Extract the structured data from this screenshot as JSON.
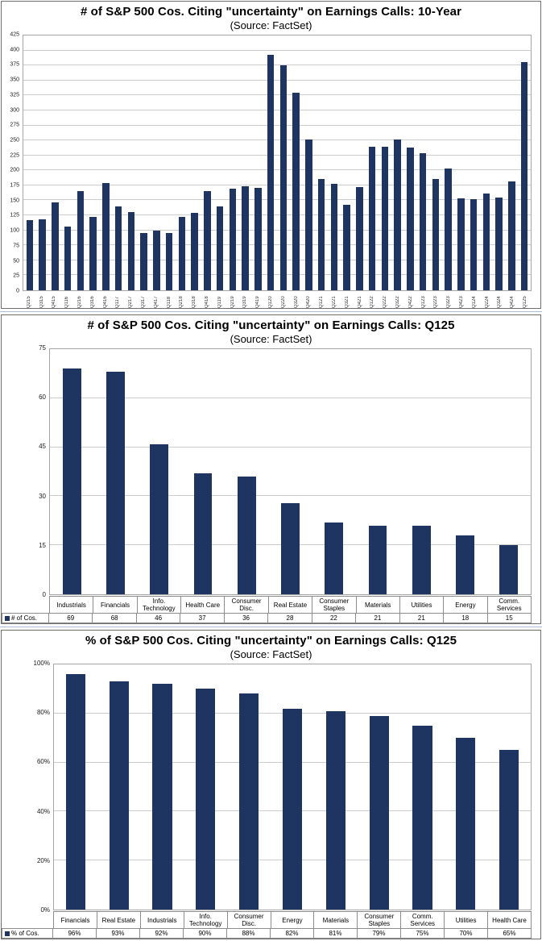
{
  "colors": {
    "bar": "#1d3560",
    "gridline": "#cccccc",
    "plot_border": "#a6a6a6",
    "figure_border": "#6e6e6e",
    "separator": "#a9bdd4"
  },
  "chart_data": [
    {
      "type": "bar",
      "title": "# of S&P 500 Cos. Citing \"uncertainty\" on Earnings Calls: 10-Year",
      "subtitle": "(Source: FactSet)",
      "categories": [
        "Q215",
        "Q315",
        "Q415",
        "Q116",
        "Q216",
        "Q316",
        "Q416",
        "Q117",
        "Q217",
        "Q317",
        "Q417",
        "Q118",
        "Q218",
        "Q318",
        "Q418",
        "Q119",
        "Q219",
        "Q319",
        "Q419",
        "Q120",
        "Q220",
        "Q320",
        "Q420",
        "Q121",
        "Q221",
        "Q321",
        "Q421",
        "Q122",
        "Q222",
        "Q322",
        "Q422",
        "Q123",
        "Q223",
        "Q323",
        "Q423",
        "Q124",
        "Q224",
        "Q324",
        "Q424",
        "Q125"
      ],
      "values": [
        117,
        118,
        146,
        106,
        165,
        123,
        179,
        140,
        130,
        96,
        100,
        95,
        123,
        129,
        166,
        140,
        169,
        174,
        171,
        393,
        375,
        330,
        252,
        186,
        178,
        143,
        172,
        240,
        240,
        251,
        238,
        228,
        186,
        203,
        153,
        152,
        161,
        155,
        182,
        381
      ],
      "ylim": [
        0,
        425
      ],
      "ytick_step": 25,
      "ytick_suffix": "",
      "grid": true,
      "x_labels_rotated": true,
      "table": false,
      "bar_width_frac": 0.55
    },
    {
      "type": "bar",
      "title": "# of S&P 500 Cos. Citing \"uncertainty\" on Earnings Calls: Q125",
      "subtitle": "(Source: FactSet)",
      "legend_label": "# of Cos.",
      "categories": [
        "Industrials",
        "Financials",
        "Info.\nTechnology",
        "Health Care",
        "Consumer\nDisc.",
        "Real Estate",
        "Consumer\nStaples",
        "Materials",
        "Utilities",
        "Energy",
        "Comm.\nServices"
      ],
      "values": [
        69,
        68,
        46,
        37,
        36,
        28,
        22,
        21,
        21,
        18,
        15
      ],
      "value_labels": [
        "69",
        "68",
        "46",
        "37",
        "36",
        "28",
        "22",
        "21",
        "21",
        "18",
        "15"
      ],
      "ylim": [
        0,
        75
      ],
      "ytick_step": 15,
      "ytick_suffix": "",
      "grid": true,
      "x_labels_rotated": false,
      "table": true,
      "bar_width_frac": 0.42
    },
    {
      "type": "bar",
      "title": "% of S&P 500 Cos. Citing \"uncertainty\" on Earnings Calls: Q125",
      "subtitle": "(Source: FactSet)",
      "legend_label": "% of Cos.",
      "categories": [
        "Financials",
        "Real Estate",
        "Industrials",
        "Info.\nTechnology",
        "Consumer\nDisc.",
        "Energy",
        "Materials",
        "Consumer\nStaples",
        "Comm.\nServices",
        "Utilities",
        "Health Care"
      ],
      "values": [
        96,
        93,
        92,
        90,
        88,
        82,
        81,
        79,
        75,
        70,
        65
      ],
      "value_labels": [
        "96%",
        "93%",
        "92%",
        "90%",
        "88%",
        "82%",
        "81%",
        "79%",
        "75%",
        "70%",
        "65%"
      ],
      "ylim": [
        0,
        100
      ],
      "ytick_step": 20,
      "ytick_suffix": "%",
      "grid": true,
      "x_labels_rotated": false,
      "table": true,
      "bar_width_frac": 0.45
    }
  ]
}
